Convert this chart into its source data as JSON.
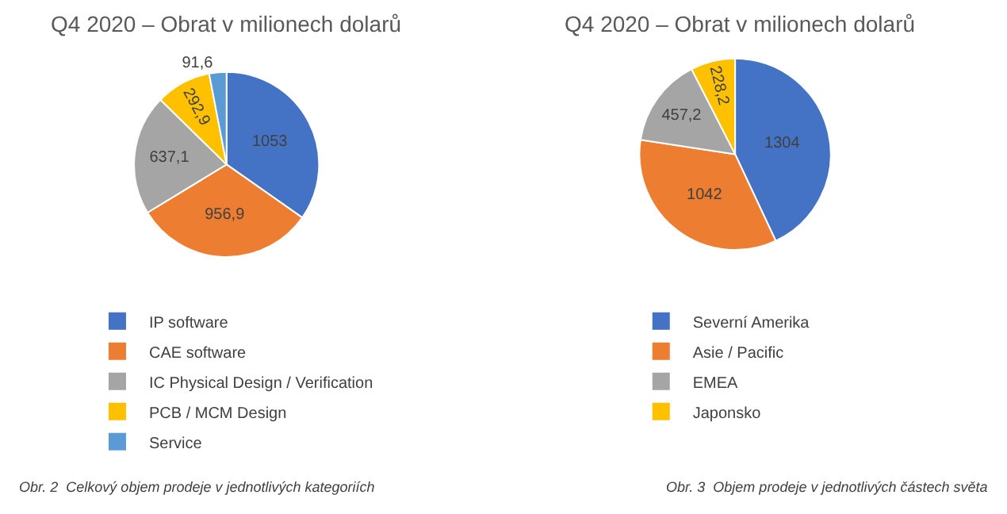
{
  "chart_data": [
    {
      "type": "pie",
      "title": "Q4 2020 – Obrat v milionech dolarů",
      "categories": [
        "IP software",
        "CAE software",
        "IC Physical Design / Verification",
        "PCB / MCM Design",
        "Service"
      ],
      "values": [
        1053,
        956.9,
        637.1,
        292.9,
        91.6
      ],
      "colors": [
        "#4472c4",
        "#ed7d31",
        "#a5a5a5",
        "#ffc000",
        "#5b9bd5"
      ],
      "value_labels": [
        "1053",
        "956,9",
        "637,1",
        "292,9",
        "91,6"
      ],
      "legend": "bottom",
      "annotations": [
        "Obr. 2  Celkový objem prodeje v jednotlivých kategoriích"
      ]
    },
    {
      "type": "pie",
      "title": "Q4 2020 – Obrat v milionech dolarů",
      "categories": [
        "Severní Amerika",
        "Asie / Pacific",
        "EMEA",
        "Japonsko"
      ],
      "values": [
        1304,
        1042,
        457.2,
        228.2
      ],
      "colors": [
        "#4472c4",
        "#ed7d31",
        "#a5a5a5",
        "#ffc000"
      ],
      "value_labels": [
        "1304",
        "1042",
        "457,2",
        "228,2"
      ],
      "legend": "bottom",
      "annotations": [
        "Obr. 3  Objem prodeje v jednotlivých částech světa"
      ]
    }
  ]
}
